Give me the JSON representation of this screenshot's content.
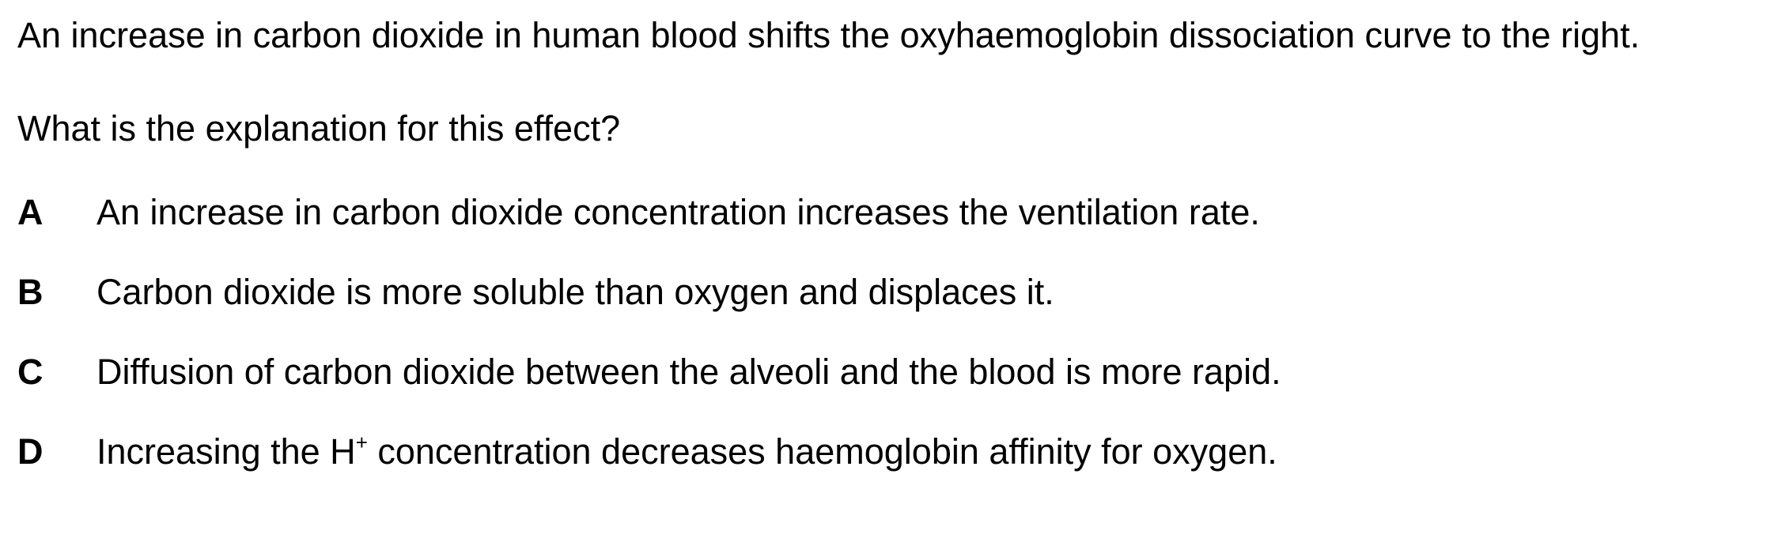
{
  "question": {
    "stem": "An increase in carbon dioxide in human blood shifts the oxyhaemoglobin dissociation curve to the right.",
    "prompt": "What is the explanation for this effect?"
  },
  "options": [
    {
      "letter": "A",
      "text": "An increase in carbon dioxide concentration increases the ventilation rate."
    },
    {
      "letter": "B",
      "text": "Carbon dioxide is more soluble than oxygen and displaces it."
    },
    {
      "letter": "C",
      "text": "Diffusion of carbon dioxide between the alveoli and the blood is more rapid."
    },
    {
      "letter": "D",
      "text_before": "Increasing the H",
      "superscript": "+",
      "text_after": " concentration decreases haemoglobin affinity for oxygen."
    }
  ]
}
